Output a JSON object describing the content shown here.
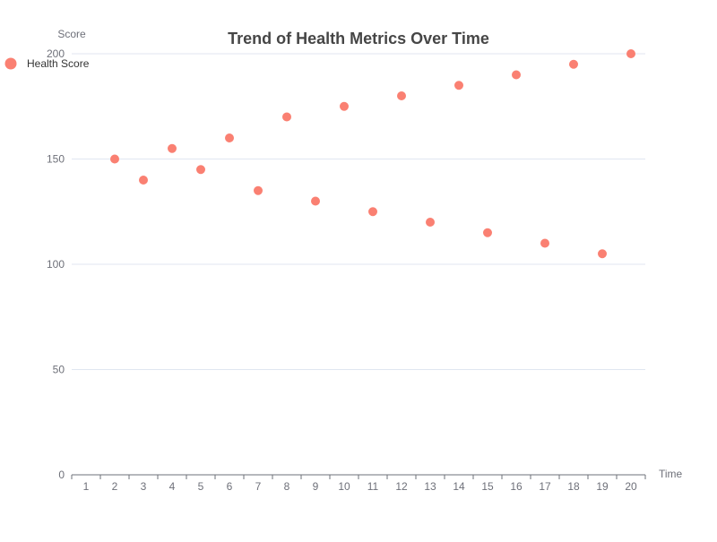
{
  "chart_data": {
    "type": "scatter",
    "title": "Trend of Health Metrics Over Time",
    "xlabel": "Time",
    "ylabel": "Score",
    "x_categories": [
      "1",
      "2",
      "3",
      "4",
      "5",
      "6",
      "7",
      "8",
      "9",
      "10",
      "11",
      "12",
      "13",
      "14",
      "15",
      "16",
      "17",
      "18",
      "19",
      "20"
    ],
    "ylim": [
      0,
      200
    ],
    "y_ticks": [
      "0",
      "50",
      "100",
      "150",
      "200"
    ],
    "grid": true,
    "legend_position": "top-left",
    "series": [
      {
        "name": "Health Score",
        "color": "#fa8072",
        "points": [
          {
            "x": "2",
            "y": 150
          },
          {
            "x": "3",
            "y": 140
          },
          {
            "x": "4",
            "y": 155
          },
          {
            "x": "5",
            "y": 145
          },
          {
            "x": "6",
            "y": 160
          },
          {
            "x": "7",
            "y": 135
          },
          {
            "x": "8",
            "y": 170
          },
          {
            "x": "9",
            "y": 130
          },
          {
            "x": "10",
            "y": 175
          },
          {
            "x": "11",
            "y": 125
          },
          {
            "x": "12",
            "y": 180
          },
          {
            "x": "13",
            "y": 120
          },
          {
            "x": "14",
            "y": 185
          },
          {
            "x": "15",
            "y": 115
          },
          {
            "x": "16",
            "y": 190
          },
          {
            "x": "17",
            "y": 110
          },
          {
            "x": "18",
            "y": 195
          },
          {
            "x": "19",
            "y": 105
          },
          {
            "x": "20",
            "y": 200
          }
        ]
      }
    ]
  }
}
